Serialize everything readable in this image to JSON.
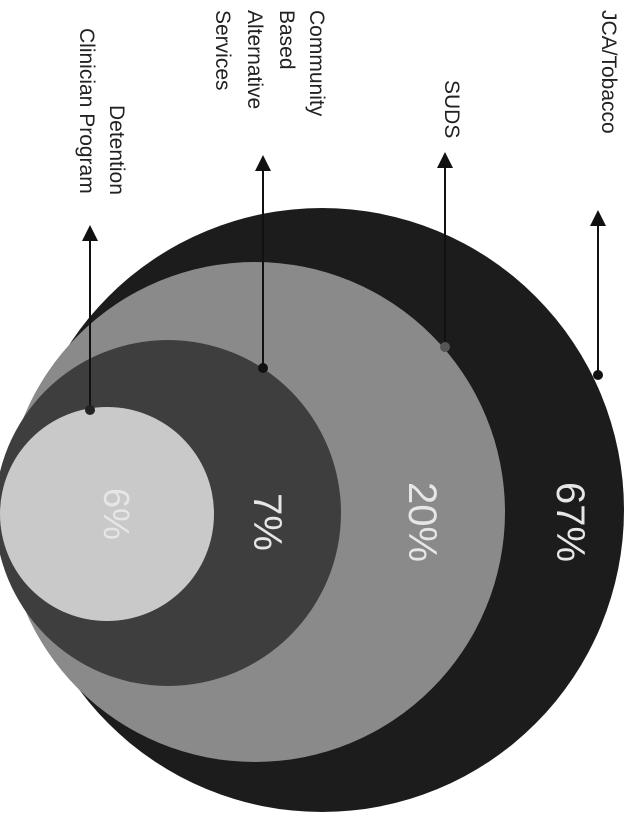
{
  "chart_data": {
    "type": "nested-circles",
    "rotation": "text rotated 90 degrees clockwise",
    "categories": [
      "JCA/Tobacco",
      "SUDS",
      "Community Based Alternative Services",
      "Detention Clinician Program"
    ],
    "values": [
      67,
      20,
      7,
      6
    ],
    "value_labels": [
      "67%",
      "20%",
      "7%",
      "6%"
    ],
    "label_lines": [
      [
        "JCA/Tobacco"
      ],
      [
        "SUDS"
      ],
      [
        "Community",
        "Based",
        "Alternative",
        "Services"
      ],
      [
        "Detention",
        "Clinician Program"
      ]
    ],
    "colors": [
      "#1c1c1c",
      "#8a8a8a",
      "#3e3e3e",
      "#c9c9c9"
    ],
    "value_label_color": "#e6e6e6"
  }
}
